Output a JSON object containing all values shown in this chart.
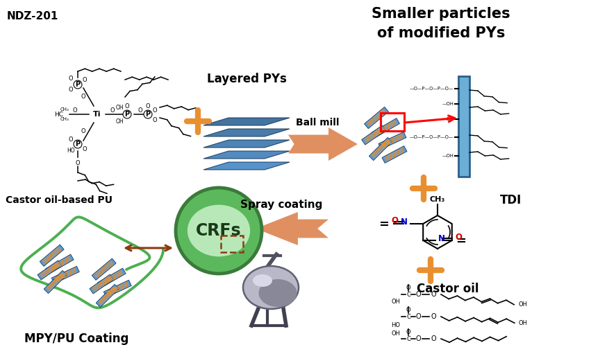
{
  "background_color": "#ffffff",
  "labels": {
    "ndz": "NDZ-201",
    "layered_pys": "Layered PYs",
    "smaller_particles_1": "Smaller particles",
    "smaller_particles_2": "of modified PYs",
    "ball_mill": "Ball mill",
    "spray_coating": "Spray coating",
    "crfs": "CRFs",
    "tdi": "TDI",
    "castor_oil": "Castor oil",
    "castor_oil_pu": "Castor oil-based PU",
    "mpy_pu": "MPY/PU Coating"
  },
  "colors": {
    "arrow_orange": "#E09060",
    "plus_orange": "#E89030",
    "blue_layer1": "#5B9BD5",
    "blue_layer2": "#2C5F8A",
    "green_outer": "#5CB85C",
    "green_inner": "#B8E8B8",
    "green_coil": "#4CAF50",
    "red": "#CC0000",
    "brown": "#8B3A10",
    "tdi_blue_n": "#0000CC",
    "tdi_red_o": "#CC0000",
    "black": "#000000",
    "gray_light": "#CCCCCC",
    "gray_dark": "#666666"
  },
  "figsize": [
    8.51,
    5.11
  ],
  "dpi": 100
}
